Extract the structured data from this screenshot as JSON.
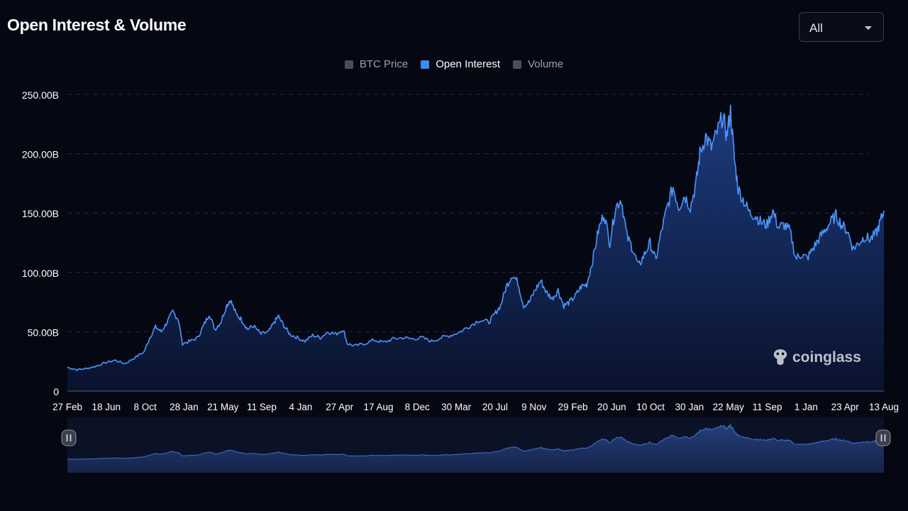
{
  "header": {
    "title": "Open Interest & Volume",
    "range_select": {
      "value": "All"
    }
  },
  "legend": [
    {
      "label": "BTC Price",
      "color": "#4a4e5a",
      "active": false
    },
    {
      "label": "Open Interest",
      "color": "#3b8cf5",
      "active": true
    },
    {
      "label": "Volume",
      "color": "#4a4e5a",
      "active": false
    }
  ],
  "watermark": {
    "text": "coinglass"
  },
  "colors": {
    "line": "#4c95ff",
    "fill_top": "#1d3a78",
    "fill_bottom": "#0a1430",
    "grid": "#26304a",
    "axis_text": "#ffffff"
  },
  "chart_data": {
    "type": "area",
    "title": "Open Interest & Volume",
    "series_name": "Open Interest",
    "y_tick_labels": [
      "0",
      "50.00B",
      "100.00B",
      "150.00B",
      "200.00B",
      "250.00B"
    ],
    "ylim": [
      0,
      250
    ],
    "y_unit": "B",
    "grid": true,
    "legend_position": "top-center",
    "x_tick_labels": [
      "27 Feb",
      "18 Jun",
      "8 Oct",
      "28 Jan",
      "21 May",
      "11 Sep",
      "4 Jan",
      "27 Apr",
      "17 Aug",
      "8 Dec",
      "30 Mar",
      "20 Jul",
      "9 Nov",
      "29 Feb",
      "20 Jun",
      "10 Oct",
      "30 Jan",
      "22 May",
      "11 Sep",
      "1 Jan",
      "23 Apr",
      "13 Aug"
    ],
    "points": [
      [
        0,
        20
      ],
      [
        0.5,
        18
      ],
      [
        1,
        19
      ],
      [
        1.5,
        21
      ],
      [
        2,
        24
      ],
      [
        2.5,
        26
      ],
      [
        3,
        23
      ],
      [
        3.5,
        28
      ],
      [
        4,
        33
      ],
      [
        4.3,
        45
      ],
      [
        4.6,
        54
      ],
      [
        4.9,
        50
      ],
      [
        5.2,
        58
      ],
      [
        5.5,
        67
      ],
      [
        5.8,
        60
      ],
      [
        6.0,
        40
      ],
      [
        6.4,
        42
      ],
      [
        6.8,
        45
      ],
      [
        7.1,
        55
      ],
      [
        7.4,
        65
      ],
      [
        7.7,
        52
      ],
      [
        8.0,
        58
      ],
      [
        8.3,
        72
      ],
      [
        8.5,
        77
      ],
      [
        8.8,
        65
      ],
      [
        9.1,
        60
      ],
      [
        9.4,
        52
      ],
      [
        9.7,
        55
      ],
      [
        10.1,
        48
      ],
      [
        10.5,
        50
      ],
      [
        10.8,
        58
      ],
      [
        11.0,
        63
      ],
      [
        11.3,
        55
      ],
      [
        11.6,
        48
      ],
      [
        12,
        45
      ],
      [
        12.4,
        42
      ],
      [
        12.8,
        47
      ],
      [
        13.2,
        45
      ],
      [
        13.6,
        50
      ],
      [
        14.0,
        48
      ],
      [
        14.4,
        52
      ],
      [
        14.6,
        40
      ],
      [
        15,
        38
      ],
      [
        15.5,
        40
      ],
      [
        16,
        43
      ],
      [
        16.5,
        41
      ],
      [
        17,
        44
      ],
      [
        17.5,
        45
      ],
      [
        18,
        44
      ],
      [
        18.5,
        45
      ],
      [
        19,
        42
      ],
      [
        19.5,
        45
      ],
      [
        20,
        47
      ],
      [
        20.5,
        50
      ],
      [
        21,
        55
      ],
      [
        21.5,
        60
      ],
      [
        22,
        58
      ],
      [
        22.3,
        65
      ],
      [
        22.6,
        72
      ],
      [
        22.9,
        88
      ],
      [
        23.2,
        98
      ],
      [
        23.5,
        92
      ],
      [
        23.8,
        72
      ],
      [
        24.1,
        75
      ],
      [
        24.4,
        85
      ],
      [
        24.7,
        93
      ],
      [
        25.0,
        83
      ],
      [
        25.3,
        78
      ],
      [
        25.6,
        85
      ],
      [
        25.9,
        72
      ],
      [
        26.2,
        75
      ],
      [
        26.5,
        80
      ],
      [
        26.8,
        88
      ],
      [
        27.1,
        90
      ],
      [
        27.4,
        110
      ],
      [
        27.7,
        135
      ],
      [
        28.0,
        150
      ],
      [
        28.3,
        125
      ],
      [
        28.6,
        155
      ],
      [
        28.9,
        162
      ],
      [
        29.2,
        130
      ],
      [
        29.5,
        120
      ],
      [
        29.8,
        105
      ],
      [
        30.1,
        115
      ],
      [
        30.4,
        125
      ],
      [
        30.7,
        110
      ],
      [
        31.0,
        135
      ],
      [
        31.3,
        155
      ],
      [
        31.6,
        172
      ],
      [
        31.9,
        155
      ],
      [
        32.2,
        165
      ],
      [
        32.5,
        155
      ],
      [
        32.8,
        175
      ],
      [
        33.0,
        200
      ],
      [
        33.3,
        215
      ],
      [
        33.6,
        205
      ],
      [
        33.9,
        218
      ],
      [
        34.2,
        232
      ],
      [
        34.4,
        215
      ],
      [
        34.6,
        236
      ],
      [
        34.8,
        195
      ],
      [
        35.0,
        170
      ],
      [
        35.3,
        160
      ],
      [
        35.6,
        150
      ],
      [
        35.9,
        148
      ],
      [
        36.2,
        142
      ],
      [
        36.5,
        140
      ],
      [
        36.8,
        152
      ],
      [
        37.1,
        138
      ],
      [
        37.4,
        140
      ],
      [
        37.7,
        135
      ],
      [
        38.0,
        112
      ],
      [
        38.3,
        115
      ],
      [
        38.6,
        112
      ],
      [
        38.9,
        120
      ],
      [
        39.2,
        128
      ],
      [
        39.5,
        135
      ],
      [
        39.8,
        142
      ],
      [
        40.1,
        148
      ],
      [
        40.4,
        140
      ],
      [
        40.7,
        135
      ],
      [
        41.0,
        120
      ],
      [
        41.3,
        125
      ],
      [
        41.6,
        130
      ],
      [
        41.9,
        128
      ],
      [
        42.2,
        133
      ],
      [
        42.4,
        142
      ],
      [
        42.6,
        152
      ]
    ],
    "x_max": 42.6
  }
}
